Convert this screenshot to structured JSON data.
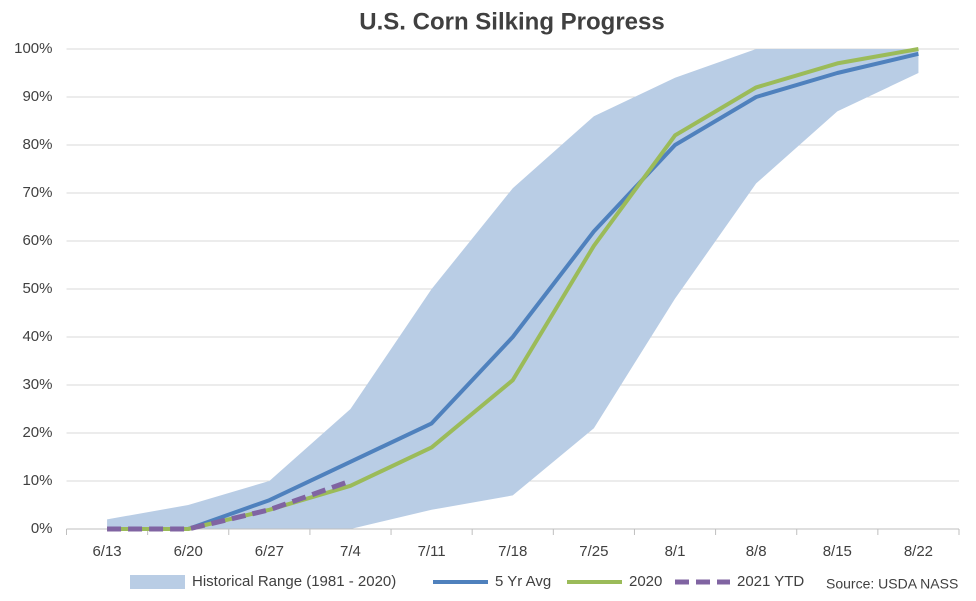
{
  "chart_data": {
    "type": "line",
    "title": "U.S. Corn Silking Progress",
    "source": "Source: USDA NASS",
    "categories": [
      "6/13",
      "6/20",
      "6/27",
      "7/4",
      "7/11",
      "7/18",
      "7/25",
      "8/1",
      "8/8",
      "8/15",
      "8/22"
    ],
    "series": [
      {
        "name": "Historical Range (1981 - 2020)",
        "color": "#b9cde5",
        "kind": "band",
        "low": [
          0,
          0,
          0,
          0,
          4,
          7,
          21,
          48,
          72,
          87,
          95
        ],
        "high": [
          2,
          5,
          10,
          25,
          50,
          71,
          86,
          94,
          100,
          100,
          100
        ]
      },
      {
        "name": "5 Yr Avg",
        "color": "#4f81bd",
        "values": [
          0,
          0,
          6,
          14,
          22,
          40,
          62,
          80,
          90,
          95,
          99
        ]
      },
      {
        "name": "2020",
        "color": "#9bbb59",
        "values": [
          0,
          0,
          4,
          9,
          17,
          31,
          59,
          82,
          92,
          97,
          100
        ]
      },
      {
        "name": "2021 YTD",
        "color": "#8064a2",
        "dashed": true,
        "values": [
          0,
          0,
          4,
          10,
          null,
          null,
          null,
          null,
          null,
          null,
          null
        ]
      }
    ],
    "ylim": [
      0,
      100
    ],
    "yticks": [
      {
        "value": 0,
        "label": "0%"
      },
      {
        "value": 10,
        "label": "10%"
      },
      {
        "value": 20,
        "label": "20%"
      },
      {
        "value": 30,
        "label": "30%"
      },
      {
        "value": 40,
        "label": "40%"
      },
      {
        "value": 50,
        "label": "50%"
      },
      {
        "value": 60,
        "label": "60%"
      },
      {
        "value": 70,
        "label": "70%"
      },
      {
        "value": 80,
        "label": "80%"
      },
      {
        "value": 90,
        "label": "90%"
      },
      {
        "value": 100,
        "label": "100%"
      }
    ],
    "grid": true,
    "legend": "bottom"
  }
}
